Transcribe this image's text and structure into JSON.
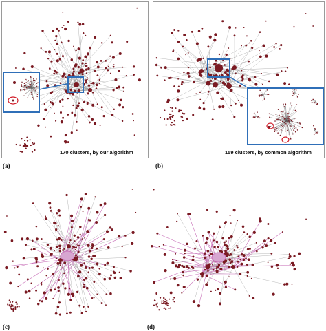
{
  "panels": [
    {
      "label": "(a)",
      "caption": "170 clusters, by our algorithm"
    },
    {
      "label": "(b)",
      "caption": "159 clusters, by common algorithm"
    },
    {
      "label": "(c)",
      "caption": ""
    },
    {
      "label": "(d)",
      "caption": ""
    }
  ],
  "colors": {
    "node": "#7a1a22",
    "edge": "#9a9a9a",
    "highlight_edge": "#c86fb8",
    "zoom_border": "#2f6fb8",
    "marker": "#d21f2b"
  }
}
